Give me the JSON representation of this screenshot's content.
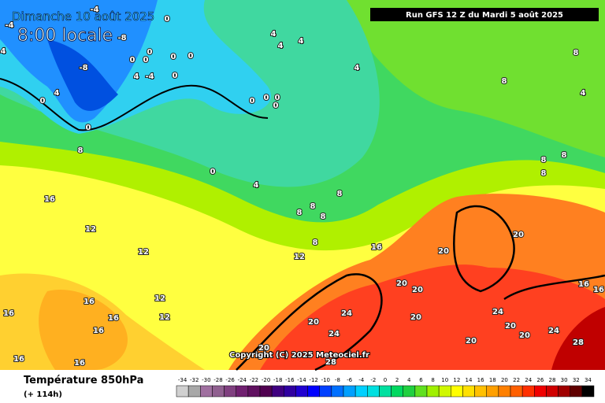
{
  "header": {
    "date": "Dimanche 10 août 2025",
    "time": "8:00 locale",
    "run": "Run GFS 12 Z du Mardi 5 août 2025"
  },
  "copyright": "Copyright (C) 2025 Meteociel.fr",
  "footer": {
    "title": "Température 850hPa",
    "lead": "(+ 114h)"
  },
  "contour_labels": [
    "-4",
    "0",
    "-8",
    "-4",
    "4",
    "-8",
    "0",
    "0",
    "0",
    "4",
    "-4",
    "0",
    "0",
    "0",
    "0",
    "0",
    "0",
    "0",
    "4",
    "4",
    "4",
    "4",
    "8",
    "8",
    "4",
    "8",
    "0",
    "0",
    "4",
    "0",
    "4",
    "16",
    "12",
    "12",
    "12",
    "16",
    "12",
    "12",
    "16",
    "16",
    "16",
    "16",
    "16",
    "16",
    "20",
    "24",
    "24",
    "20",
    "28",
    "20",
    "20",
    "20",
    "20",
    "20",
    "20",
    "24",
    "20",
    "20",
    "24",
    "28",
    "16",
    "16",
    "8",
    "8",
    "8",
    "8",
    "8",
    "8",
    "8",
    "8"
  ],
  "colorbar": {
    "values": [
      -34,
      -32,
      -30,
      -28,
      -26,
      -24,
      -22,
      -20,
      -18,
      -16,
      -14,
      -12,
      -10,
      -8,
      -6,
      -4,
      -2,
      0,
      2,
      4,
      6,
      8,
      10,
      12,
      14,
      16,
      18,
      20,
      22,
      24,
      26,
      28,
      30,
      32,
      34
    ],
    "colors": [
      "#d0d0d0",
      "#a8a8a8",
      "#a070a0",
      "#906090",
      "#804080",
      "#702070",
      "#601060",
      "#500050",
      "#400080",
      "#3000a0",
      "#2000d0",
      "#0000ff",
      "#0040ff",
      "#0070ff",
      "#00a0ff",
      "#00d0ff",
      "#00e0e0",
      "#00e0a0",
      "#00d860",
      "#20d040",
      "#60e020",
      "#a0f000",
      "#d0f800",
      "#ffff00",
      "#ffe000",
      "#ffc000",
      "#ffa000",
      "#ff8000",
      "#ff6000",
      "#ff3000",
      "#f00000",
      "#d00000",
      "#a00000",
      "#600000",
      "#000000"
    ]
  }
}
